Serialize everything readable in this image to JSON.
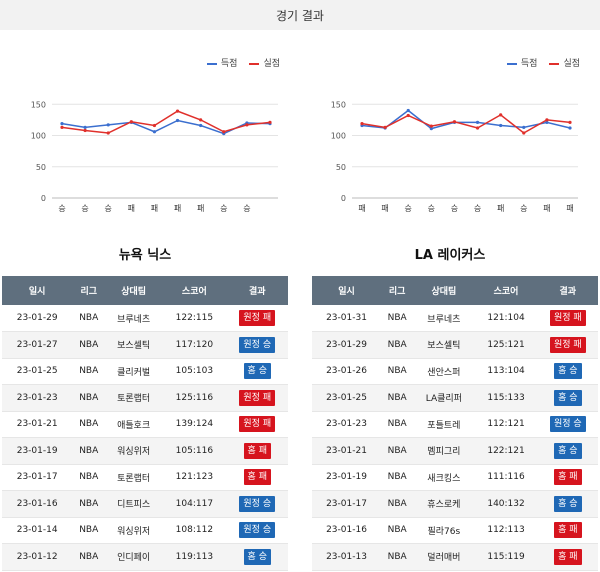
{
  "header": {
    "title": "경기 결과"
  },
  "colors": {
    "scored": "#3b6fcf",
    "conceded": "#e0302b",
    "win": "#1f68b5",
    "lose": "#d6141e",
    "table_header": "#5f6f7e"
  },
  "legend": {
    "scored": "득점",
    "conceded": "실점"
  },
  "columns": [
    "일시",
    "리그",
    "상대팀",
    "스코어",
    "결과"
  ],
  "teams": [
    {
      "name": "뉴욕 닉스",
      "games": [
        {
          "date": "23-01-29",
          "league": "NBA",
          "opponent": "브루네츠",
          "score": "122:115",
          "result": "원정 패",
          "outcome": "lose"
        },
        {
          "date": "23-01-27",
          "league": "NBA",
          "opponent": "보스셀틱",
          "score": "117:120",
          "result": "원정 승",
          "outcome": "win"
        },
        {
          "date": "23-01-25",
          "league": "NBA",
          "opponent": "클리커벌",
          "score": "105:103",
          "result": "홈 승",
          "outcome": "win"
        },
        {
          "date": "23-01-23",
          "league": "NBA",
          "opponent": "토론랩터",
          "score": "125:116",
          "result": "원정 패",
          "outcome": "lose"
        },
        {
          "date": "23-01-21",
          "league": "NBA",
          "opponent": "애틀호크",
          "score": "139:124",
          "result": "원정 패",
          "outcome": "lose"
        },
        {
          "date": "23-01-19",
          "league": "NBA",
          "opponent": "워싱위저",
          "score": "105:116",
          "result": "홈 패",
          "outcome": "lose"
        },
        {
          "date": "23-01-17",
          "league": "NBA",
          "opponent": "토론랩터",
          "score": "121:123",
          "result": "홈 패",
          "outcome": "lose"
        },
        {
          "date": "23-01-16",
          "league": "NBA",
          "opponent": "디트피스",
          "score": "104:117",
          "result": "원정 승",
          "outcome": "win"
        },
        {
          "date": "23-01-14",
          "league": "NBA",
          "opponent": "워싱위저",
          "score": "108:112",
          "result": "원정 승",
          "outcome": "win"
        },
        {
          "date": "23-01-12",
          "league": "NBA",
          "opponent": "인디페이",
          "score": "119:113",
          "result": "홈 승",
          "outcome": "win"
        }
      ]
    },
    {
      "name": "LA 레이커스",
      "games": [
        {
          "date": "23-01-31",
          "league": "NBA",
          "opponent": "브루네츠",
          "score": "121:104",
          "result": "원정 패",
          "outcome": "lose"
        },
        {
          "date": "23-01-29",
          "league": "NBA",
          "opponent": "보스셀틱",
          "score": "125:121",
          "result": "원정 패",
          "outcome": "lose"
        },
        {
          "date": "23-01-26",
          "league": "NBA",
          "opponent": "샌안스퍼",
          "score": "113:104",
          "result": "홈 승",
          "outcome": "win"
        },
        {
          "date": "23-01-25",
          "league": "NBA",
          "opponent": "LA클리퍼",
          "score": "115:133",
          "result": "홈 승",
          "outcome": "win"
        },
        {
          "date": "23-01-23",
          "league": "NBA",
          "opponent": "포틀트레",
          "score": "112:121",
          "result": "원정 승",
          "outcome": "win"
        },
        {
          "date": "23-01-21",
          "league": "NBA",
          "opponent": "멤피그리",
          "score": "122:121",
          "result": "홈 승",
          "outcome": "win"
        },
        {
          "date": "23-01-19",
          "league": "NBA",
          "opponent": "새크킹스",
          "score": "111:116",
          "result": "홈 패",
          "outcome": "lose"
        },
        {
          "date": "23-01-17",
          "league": "NBA",
          "opponent": "휴스로케",
          "score": "140:132",
          "result": "홈 승",
          "outcome": "win"
        },
        {
          "date": "23-01-16",
          "league": "NBA",
          "opponent": "필라76s",
          "score": "112:113",
          "result": "홈 패",
          "outcome": "lose"
        },
        {
          "date": "23-01-13",
          "league": "NBA",
          "opponent": "덜러매버",
          "score": "115:119",
          "result": "홈 패",
          "outcome": "lose"
        }
      ]
    }
  ],
  "chart_data": [
    {
      "type": "line",
      "x": [
        "승",
        "승",
        "승",
        "패",
        "패",
        "패",
        "패",
        "승",
        "승",
        ""
      ],
      "series": [
        {
          "name": "득점",
          "values": [
            119,
            113,
            117,
            121,
            106,
            124,
            116,
            103,
            120,
            119
          ]
        },
        {
          "name": "실점",
          "values": [
            113,
            108,
            104,
            122,
            116,
            139,
            125,
            106,
            117,
            121
          ]
        }
      ],
      "ylim": [
        0,
        160
      ],
      "yticks": [
        "0",
        "50",
        "100",
        "150"
      ],
      "grid": true,
      "legend": "top-right"
    },
    {
      "type": "line",
      "x": [
        "패",
        "패",
        "승",
        "승",
        "승",
        "승",
        "패",
        "승",
        "패",
        "패"
      ],
      "series": [
        {
          "name": "득점",
          "values": [
            116,
            112,
            140,
            111,
            121,
            121,
            116,
            113,
            121,
            112
          ]
        },
        {
          "name": "실점",
          "values": [
            119,
            113,
            132,
            115,
            122,
            112,
            133,
            104,
            125,
            121
          ]
        }
      ],
      "ylim": [
        0,
        160
      ],
      "yticks": [
        "0",
        "50",
        "100",
        "150"
      ],
      "grid": true,
      "legend": "top-right"
    }
  ]
}
